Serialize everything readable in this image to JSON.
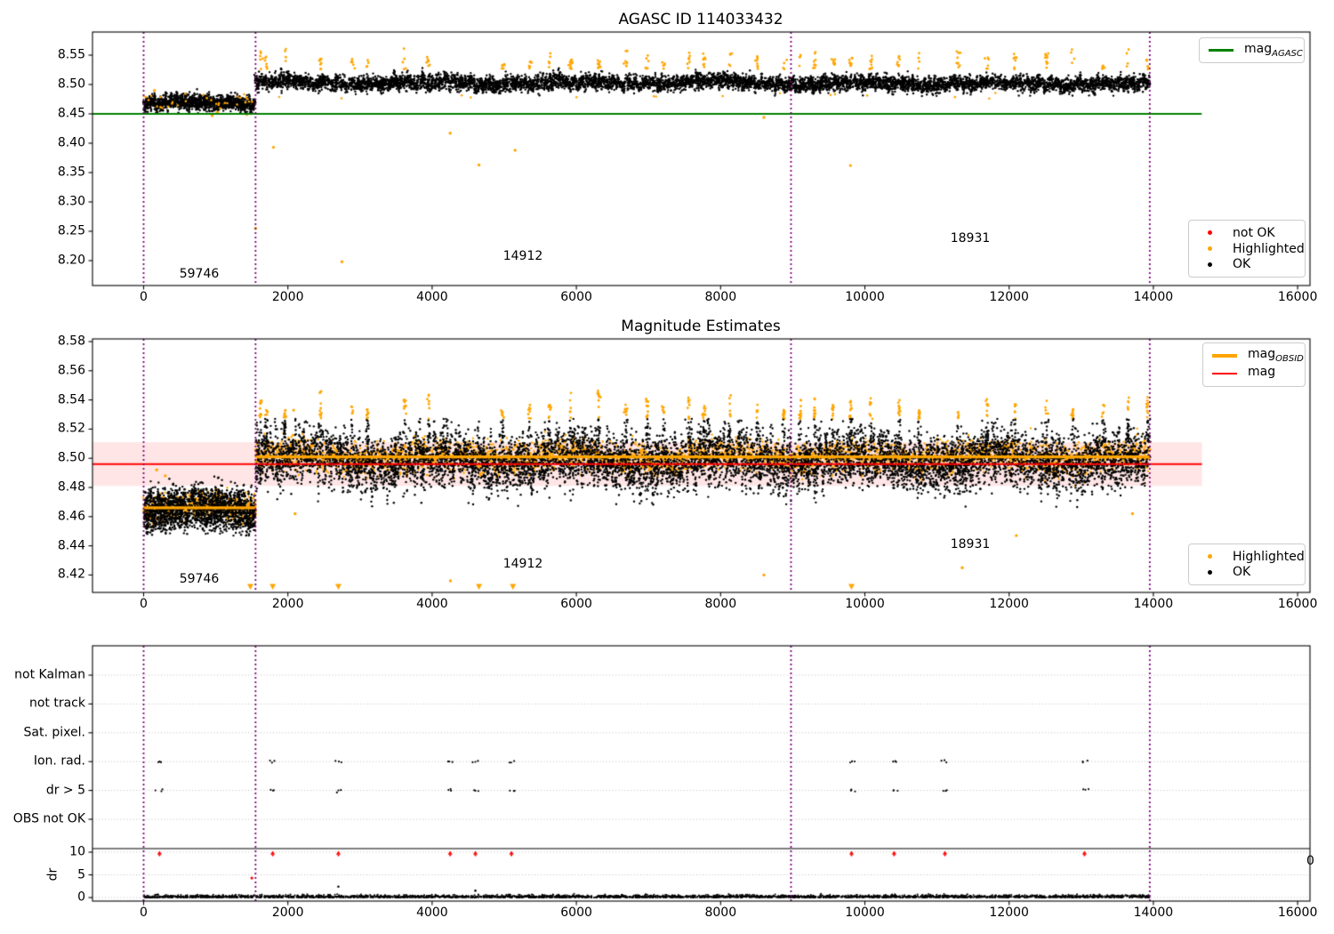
{
  "colors": {
    "green": "#008000",
    "red": "#ff0000",
    "orange": "#ffa500",
    "purple": "#800080",
    "black": "#000000",
    "grid": "#bfbfbf",
    "band_pink": "rgba(255,0,0,0.10)"
  },
  "chart_data": [
    {
      "type": "scatter",
      "title": "AGASC ID 114033432",
      "xlim": [
        -666,
        16177
      ],
      "ylim": [
        8.158,
        8.589
      ],
      "x_ticks": [
        0,
        2000,
        4000,
        6000,
        8000,
        10000,
        12000,
        14000,
        16000
      ],
      "y_ticks": [
        {
          "v": 8.2,
          "label": "8.20"
        },
        {
          "v": 8.25,
          "label": "8.25"
        },
        {
          "v": 8.3,
          "label": "8.30"
        },
        {
          "v": 8.35,
          "label": "8.35"
        },
        {
          "v": 8.4,
          "label": "8.40"
        },
        {
          "v": 8.45,
          "label": "8.45"
        },
        {
          "v": 8.5,
          "label": "8.50"
        },
        {
          "v": 8.55,
          "label": "8.55"
        }
      ],
      "legend_line": {
        "label_main": "mag",
        "label_sub": "AGASC",
        "color": "#008000"
      },
      "legend_points": [
        {
          "label": "not OK",
          "color": "#ff0000"
        },
        {
          "label": "Highlighted",
          "color": "#ffa500"
        },
        {
          "label": "OK",
          "color": "#000000"
        }
      ],
      "mag_agasc_line": {
        "y": 8.45,
        "x0": -660,
        "x1": 14670
      },
      "obsid_boundaries_x": [
        0,
        1552,
        8976,
        13950
      ],
      "obsid_labels": [
        {
          "text": "59746",
          "x": 776,
          "y": 8.175
        },
        {
          "text": "14912",
          "x": 5264,
          "y": 8.205
        },
        {
          "text": "18931",
          "x": 11460,
          "y": 8.235
        }
      ],
      "ok_segments": [
        {
          "x0": 0,
          "x1": 1552,
          "mean": 8.468,
          "sd": 0.0075
        },
        {
          "x0": 1552,
          "x1": 8976,
          "mean": 8.503,
          "sd": 0.0075
        },
        {
          "x0": 8976,
          "x1": 13950,
          "mean": 8.5015,
          "sd": 0.0075
        }
      ],
      "highlight_spike_x": [
        1620,
        1700,
        1960,
        2450,
        2890,
        3100,
        3620,
        3950,
        4980,
        5350,
        5630,
        5920,
        6310,
        6690,
        6980,
        7210,
        7560,
        7770,
        8130,
        8510,
        8880,
        9100,
        9310,
        9560,
        9800,
        10080,
        10470,
        10750,
        11290,
        11700,
        12080,
        12520,
        12880,
        13310,
        13650,
        13920
      ],
      "highlight_spike_mag_range": [
        8.526,
        8.553
      ],
      "highlight_outliers": [
        [
          150,
          8.49
        ],
        [
          950,
          8.447
        ],
        [
          1430,
          8.449
        ],
        [
          1552,
          8.255
        ],
        [
          1800,
          8.393
        ],
        [
          2750,
          8.198
        ],
        [
          4250,
          8.417
        ],
        [
          4650,
          8.363
        ],
        [
          5150,
          8.388
        ],
        [
          8600,
          8.444
        ],
        [
          9800,
          8.362
        ]
      ]
    },
    {
      "type": "scatter",
      "title": "Magnitude Estimates",
      "xlim": [
        -666,
        16177
      ],
      "ylim": [
        8.408,
        8.582
      ],
      "x_ticks": [
        0,
        2000,
        4000,
        6000,
        8000,
        10000,
        12000,
        14000,
        16000
      ],
      "y_ticks": [
        {
          "v": 8.42,
          "label": "8.42"
        },
        {
          "v": 8.44,
          "label": "8.44"
        },
        {
          "v": 8.46,
          "label": "8.46"
        },
        {
          "v": 8.48,
          "label": "8.48"
        },
        {
          "v": 8.5,
          "label": "8.50"
        },
        {
          "v": 8.52,
          "label": "8.52"
        },
        {
          "v": 8.54,
          "label": "8.54"
        },
        {
          "v": 8.56,
          "label": "8.56"
        },
        {
          "v": 8.58,
          "label": "8.58"
        }
      ],
      "legend_lines": [
        {
          "label_main": "mag",
          "label_sub": "OBSID",
          "color": "#ffa500"
        },
        {
          "label_main": "mag",
          "label_sub": "",
          "color": "#ff0000"
        }
      ],
      "legend_points": [
        {
          "label": "Highlighted",
          "color": "#ffa500"
        },
        {
          "label": "OK",
          "color": "#000000"
        }
      ],
      "mag_line": {
        "y": 8.496,
        "x0": -660,
        "x1": 14673,
        "uncertainty_band": 0.015
      },
      "mag_obsid_segments": [
        {
          "x0": 0,
          "x1": 1552,
          "y": 8.466
        },
        {
          "x0": 1552,
          "x1": 13950,
          "y": 8.501
        }
      ],
      "ok_segments": [
        {
          "x0": 0,
          "x1": 1552,
          "mean": 8.4655,
          "sd": 0.008
        },
        {
          "x0": 1552,
          "x1": 13950,
          "mean": 8.4985,
          "sd": 0.0105
        }
      ],
      "highlighted_segments": [
        {
          "x0": 0,
          "x1": 1552,
          "mean": 8.466,
          "sd": 0.005
        },
        {
          "x0": 1552,
          "x1": 13950,
          "mean": 8.501,
          "sd": 0.006
        }
      ],
      "highlight_spike_x": [
        1620,
        1700,
        1960,
        2450,
        2890,
        3100,
        3620,
        3950,
        4980,
        5350,
        5630,
        5920,
        6310,
        6690,
        6980,
        7210,
        7560,
        7770,
        8130,
        8510,
        8880,
        9100,
        9310,
        9560,
        9800,
        10080,
        10470,
        10750,
        11290,
        11700,
        12080,
        12520,
        12880,
        13310,
        13650,
        13920
      ],
      "highlight_spike_mag_range": [
        8.527,
        8.543
      ],
      "black_spike_mag_range": [
        8.51,
        8.527
      ],
      "clipped_low_x": [
        1480,
        1790,
        2700,
        4650,
        5120,
        9815
      ],
      "highlight_outliers": [
        [
          180,
          8.492
        ],
        [
          300,
          8.488
        ],
        [
          2080,
          8.533
        ],
        [
          2100,
          8.462
        ],
        [
          4254,
          8.416
        ],
        [
          8600,
          8.42
        ],
        [
          11350,
          8.425
        ],
        [
          12100,
          8.447
        ],
        [
          13710,
          8.462
        ]
      ],
      "obsid_boundaries_x": [
        0,
        1552,
        8976,
        13950
      ],
      "obsid_labels": [
        {
          "text": "59746",
          "x": 776,
          "y": 8.418
        },
        {
          "text": "14912",
          "x": 5264,
          "y": 8.428
        },
        {
          "text": "18931",
          "x": 11460,
          "y": 8.441
        }
      ]
    },
    {
      "type": "scatter",
      "title": "",
      "x_ticks": [
        0,
        2000,
        4000,
        6000,
        8000,
        10000,
        12000,
        14000,
        16000
      ],
      "y_categories": [
        "not Kalman",
        "not track",
        "Sat. pixel.",
        "Ion. rad.",
        "dr > 5",
        "OBS not OK"
      ],
      "flag_rows_with_events": [
        "Ion. rad.",
        "dr > 5"
      ],
      "flag_events_x": [
        220,
        1790,
        2700,
        4250,
        4600,
        5100,
        9815,
        10405,
        11110,
        13045
      ],
      "dr_axis": {
        "label": "dr",
        "ticks": [
          {
            "v": 0,
            "label": "0"
          },
          {
            "v": 5,
            "label": "5"
          },
          {
            "v": 10,
            "label": "10"
          }
        ],
        "extra_right_label": "0"
      },
      "dr_clipped": {
        "x": [
          220,
          1790,
          2700,
          4250,
          4600,
          5100,
          9815,
          10405,
          11110,
          13045
        ],
        "dr": 9.8
      },
      "dr_red_outlier": [
        1500,
        4.3
      ],
      "dr_black_outliers": [
        [
          2700,
          2.4
        ],
        [
          4600,
          1.5
        ]
      ],
      "dr_baseline": {
        "x0": 0,
        "x1": 13950,
        "typical_max": 0.7
      },
      "obsid_boundaries_x": [
        0,
        1552,
        8976,
        13950
      ]
    }
  ]
}
